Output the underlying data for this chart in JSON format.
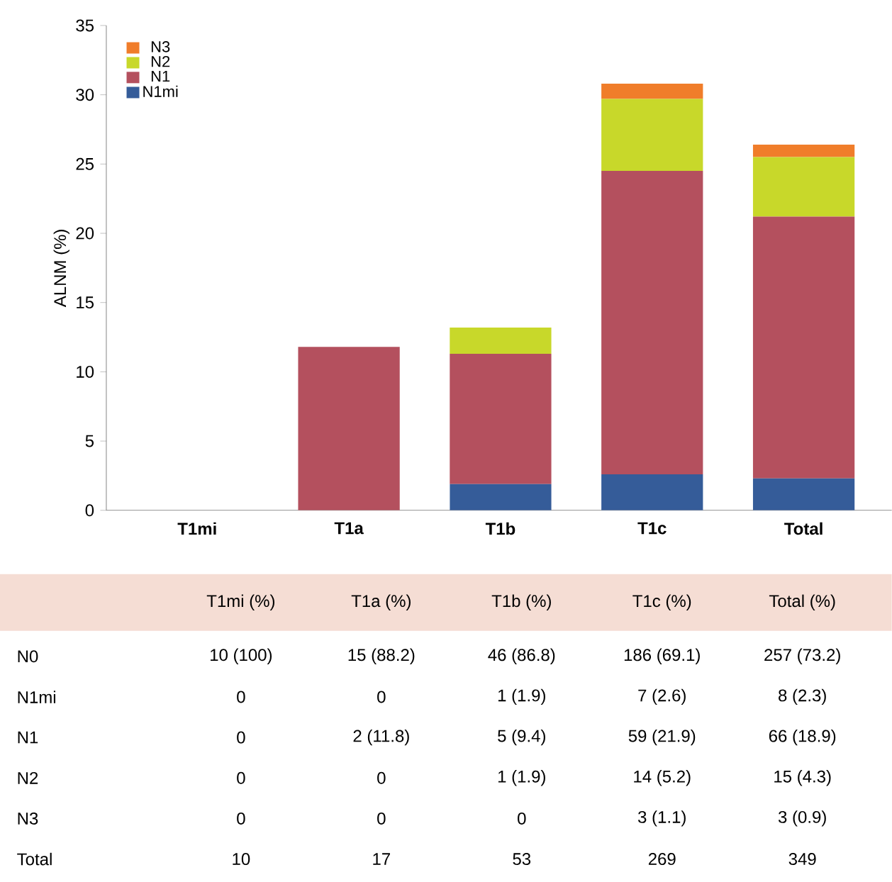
{
  "chart_data": [
    {
      "type": "bar",
      "stacked": true,
      "ylabel": "ALNM (%)",
      "categories": [
        "T1mi",
        "T1a",
        "T1b",
        "T1c",
        "Total"
      ],
      "series": [
        {
          "name": "N1mi",
          "color": "#355c99",
          "values": [
            0,
            0,
            1.9,
            2.6,
            2.3
          ]
        },
        {
          "name": "N1",
          "color": "#b4505e",
          "values": [
            0,
            11.8,
            9.4,
            21.9,
            18.9
          ]
        },
        {
          "name": "N2",
          "color": "#c8d82a",
          "values": [
            0,
            0,
            1.9,
            5.2,
            4.3
          ]
        },
        {
          "name": "N3",
          "color": "#f07d2a",
          "values": [
            0,
            0,
            0,
            1.1,
            0.9
          ]
        }
      ],
      "ylim": [
        0,
        35
      ],
      "yticks": [
        0,
        5,
        10,
        15,
        20,
        25,
        30,
        35
      ],
      "legend": "top left"
    },
    {
      "type": "other",
      "color": "#f5ddd4",
      "categories": [
        "T1mi (%)",
        "T1a (%)",
        "T1b (%)",
        "T1c (%)",
        "Total (%)"
      ],
      "y_categories": [
        "N0",
        "N1mi",
        "N1",
        "N2",
        "N3",
        "Total"
      ],
      "cell_labels": [
        [
          "10 (100)",
          "15 (88.2)",
          "46 (86.8)",
          "186 (69.1)",
          "257 (73.2)"
        ],
        [
          "0",
          "0",
          "1 (1.9)",
          "7 (2.6)",
          "8 (2.3)"
        ],
        [
          "0",
          "2 (11.8)",
          "5 (9.4)",
          "59 (21.9)",
          "66 (18.9)"
        ],
        [
          "0",
          "0",
          "1 (1.9)",
          "14 (5.2)",
          "15 (4.3)"
        ],
        [
          "0",
          "0",
          "0",
          "3 (1.1)",
          "3 (0.9)"
        ],
        [
          "10",
          "17",
          "53",
          "269",
          "349"
        ]
      ]
    }
  ]
}
